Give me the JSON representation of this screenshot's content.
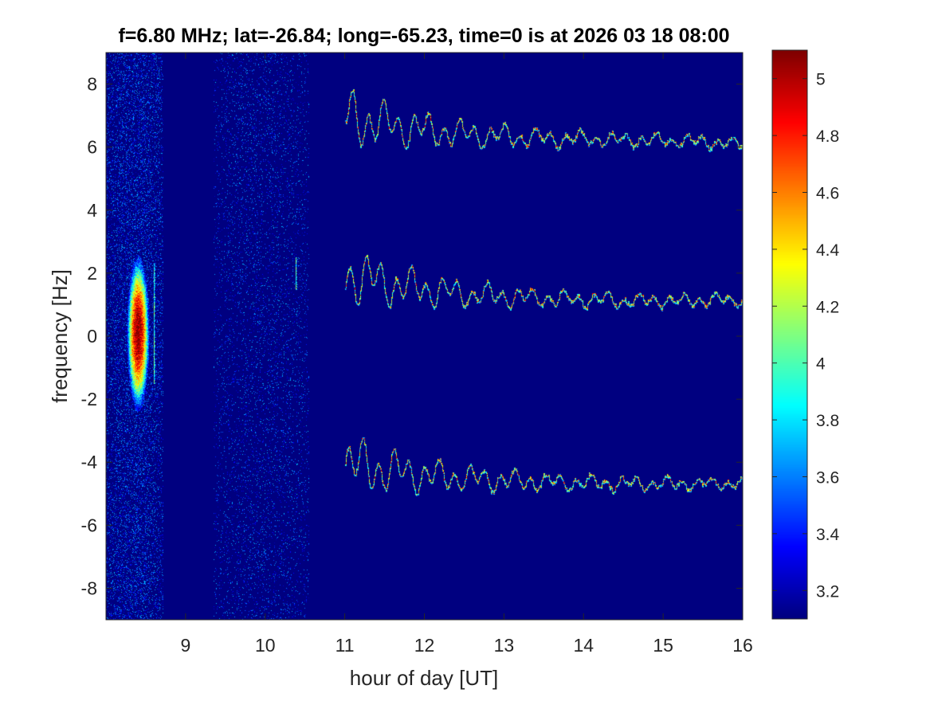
{
  "chart_data": {
    "type": "heatmap",
    "title": "f=6.80 MHz;  lat=-26.84; long=-65.23, time=0 is at 2026 03 18 08:00",
    "xlabel": "hour of day [UT]",
    "ylabel": "frequency [Hz]",
    "xlim": [
      8,
      16
    ],
    "ylim": [
      -9,
      9
    ],
    "xticks": [
      9,
      10,
      11,
      12,
      13,
      14,
      15,
      16
    ],
    "yticks": [
      8,
      6,
      4,
      2,
      0,
      -2,
      -4,
      -6,
      -8
    ],
    "colorbar": {
      "colormap": "jet",
      "clim": [
        3.1,
        5.1
      ],
      "ticks": [
        5,
        4.8,
        4.6,
        4.4,
        4.2,
        4,
        3.8,
        3.6,
        3.4,
        3.2
      ]
    },
    "background_color": "#00008f",
    "features": {
      "noise_band_early": {
        "x_range": [
          8.0,
          8.72
        ],
        "y_range": [
          -9,
          9
        ]
      },
      "noise_band_mid": {
        "x_range": [
          9.35,
          10.55
        ],
        "y_range": [
          -9,
          9
        ]
      },
      "strong_echo": {
        "x_range": [
          8.28,
          8.52
        ],
        "y_range": [
          -2.0,
          2.2
        ],
        "peak_value": 5.1
      },
      "echo_spike_1": {
        "x": 8.6,
        "y_range": [
          -1.5,
          2.3
        ]
      },
      "echo_spike_2": {
        "x": 10.38,
        "y_range": [
          1.5,
          2.5
        ]
      },
      "traces": [
        {
          "x_start": 11.0,
          "x_end": 16.0,
          "start_freq": 7.0,
          "mean_freq": 6.2,
          "end_freq": 6.0
        },
        {
          "x_start": 11.0,
          "x_end": 16.0,
          "start_freq": 2.0,
          "mean_freq": 1.1,
          "end_freq": 1.2
        },
        {
          "x_start": 11.0,
          "x_end": 16.0,
          "start_freq": -4.0,
          "mean_freq": -4.7,
          "end_freq": -4.6
        }
      ]
    }
  }
}
